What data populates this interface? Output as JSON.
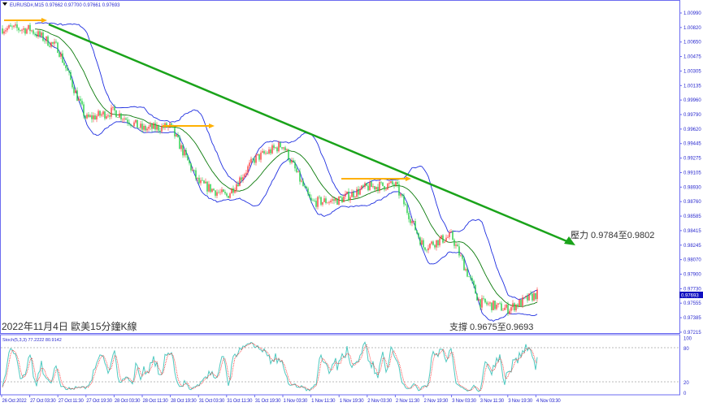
{
  "header": {
    "symbol": "EURUSD#,M15",
    "ohlc": "0.97662 0.97700 0.97661 0.97693"
  },
  "stoch": {
    "label": "Stoch(5,3,3) 77.2222 80.9142",
    "levels": [
      "100",
      "80",
      "20",
      "0"
    ]
  },
  "annotations": {
    "title": "2022年11月4日 歐美15分鐘K線",
    "resistance": "壓力 0.9784至0.9802",
    "support": "支撐 0.9675至0.9693"
  },
  "price_axis": [
    "1.00990",
    "1.00820",
    "1.00650",
    "1.00475",
    "1.00305",
    "1.00135",
    "0.99960",
    "0.99790",
    "0.99620",
    "0.99445",
    "0.99275",
    "0.99105",
    "0.98930",
    "0.98760",
    "0.98585",
    "0.98415",
    "0.98245",
    "0.98070",
    "0.97900",
    "0.97730",
    "0.97555",
    "0.97385",
    "0.97215"
  ],
  "current_price": "0.97693",
  "time_axis": [
    "26 Oct 2022",
    "27 Oct 03:30",
    "27 Oct 11:30",
    "27 Oct 19:30",
    "28 Oct 03:30",
    "28 Oct 11:30",
    "28 Oct 19:30",
    "31 Oct 03:30",
    "31 Oct 11:30",
    "31 Oct 19:30",
    "1 Nov 03:30",
    "1 Nov 11:30",
    "1 Nov 19:30",
    "2 Nov 03:30",
    "2 Nov 11:30",
    "2 Nov 19:30",
    "3 Nov 03:30",
    "3 Nov 11:30",
    "3 Nov 19:30",
    "4 Nov 03:30"
  ],
  "colors": {
    "bull": "#ff3b3b",
    "bear": "#22cc44",
    "bands": "#1f2fe0",
    "ma": "#0a7a0a",
    "trend": "#1aa31a",
    "level": "#ffb000",
    "stoch_main": "#4fc9c0",
    "stoch_signal": "#ff2020",
    "axis": "#6b6bf0"
  },
  "chart_data": {
    "type": "candlestick",
    "approx_close_by_time": [
      1.0081,
      1.008,
      1.0058,
      0.9975,
      0.9984,
      0.9963,
      0.9966,
      0.99,
      0.9884,
      0.9928,
      0.9945,
      0.9877,
      0.988,
      0.9895,
      0.9898,
      0.9825,
      0.9838,
      0.976,
      0.9752,
      0.9769
    ],
    "trendline": {
      "from_price": 1.0085,
      "to_price": 0.98
    },
    "stoch_ylim": [
      0,
      100
    ]
  }
}
